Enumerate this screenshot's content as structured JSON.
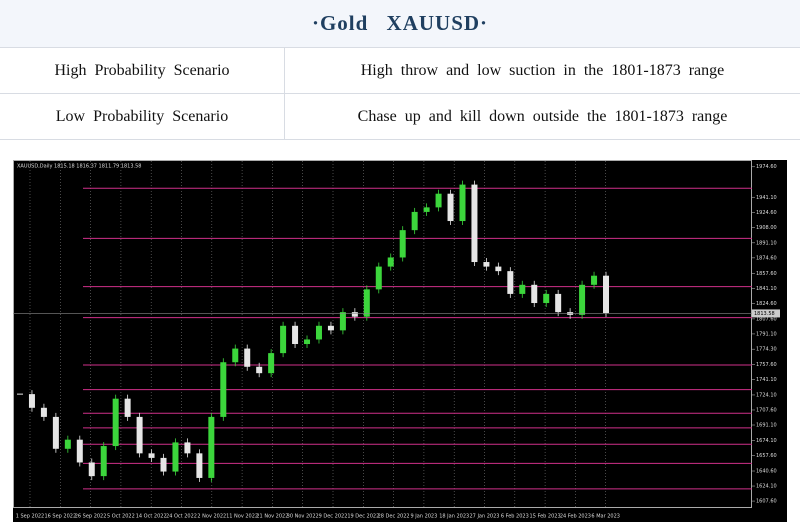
{
  "header": {
    "title": "·Gold XAUUSD·"
  },
  "table": {
    "rows": [
      [
        "High Probability Scenario",
        "High throw and low suction in the 1801-1873 range"
      ],
      [
        "Low Probability Scenario",
        "Chase up and kill down outside the 1801-1873 range"
      ]
    ]
  },
  "chart": {
    "info": "XAUUSD,Daily 1815.18 1816.37 1811.79 1813.58",
    "last_price": {
      "value": 1813.58,
      "label": "1813.58"
    },
    "ylim": [
      1600,
      1982
    ],
    "yticks": [
      {
        "value": 1974.6,
        "label": "1974.60"
      },
      {
        "value": 1941.1,
        "label": "1941.10"
      },
      {
        "value": 1924.6,
        "label": "1924.60"
      },
      {
        "value": 1908.0,
        "label": "1908.00"
      },
      {
        "value": 1891.1,
        "label": "1891.10"
      },
      {
        "value": 1874.6,
        "label": "1874.60"
      },
      {
        "value": 1857.6,
        "label": "1857.60"
      },
      {
        "value": 1841.1,
        "label": "1841.10"
      },
      {
        "value": 1824.6,
        "label": "1824.60"
      },
      {
        "value": 1807.6,
        "label": "1807.60"
      },
      {
        "value": 1791.1,
        "label": "1791.10"
      },
      {
        "value": 1774.3,
        "label": "1774.30"
      },
      {
        "value": 1757.6,
        "label": "1757.60"
      },
      {
        "value": 1741.1,
        "label": "1741.10"
      },
      {
        "value": 1724.1,
        "label": "1724.10"
      },
      {
        "value": 1707.6,
        "label": "1707.60"
      },
      {
        "value": 1691.1,
        "label": "1691.10"
      },
      {
        "value": 1674.1,
        "label": "1674.10"
      },
      {
        "value": 1657.6,
        "label": "1657.60"
      },
      {
        "value": 1640.6,
        "label": "1640.60"
      },
      {
        "value": 1624.1,
        "label": "1624.10"
      },
      {
        "value": 1607.6,
        "label": "1607.60"
      }
    ],
    "dates": [
      "1 Sep 2022",
      "16 Sep 2022",
      "26 Sep 2022",
      "5 Oct 2022",
      "14 Oct 2022",
      "24 Oct 2022",
      "2 Nov 2022",
      "11 Nov 2022",
      "21 Nov 2022",
      "30 Nov 2022",
      "9 Dec 2022",
      "19 Dec 2022",
      "28 Dec 2022",
      "9 Jan 2023",
      "18 Jan 2023",
      "27 Jan 2023",
      "6 Feb 2023",
      "15 Feb 2023",
      "24 Feb 2023",
      "6 Mar 2023"
    ],
    "levels": [
      1951,
      1896,
      1843,
      1809,
      1757,
      1730,
      1704,
      1688,
      1670,
      1649,
      1621
    ],
    "level_color": "#d0308a",
    "closes": [
      1725,
      1710,
      1700,
      1665,
      1675,
      1650,
      1635,
      1668,
      1720,
      1700,
      1660,
      1655,
      1640,
      1672,
      1660,
      1633,
      1700,
      1760,
      1775,
      1755,
      1748,
      1770,
      1800,
      1780,
      1785,
      1800,
      1795,
      1815,
      1810,
      1840,
      1865,
      1875,
      1905,
      1925,
      1930,
      1945,
      1915,
      1955,
      1870,
      1865,
      1860,
      1835,
      1845,
      1825,
      1835,
      1815,
      1812,
      1845,
      1855,
      1814
    ],
    "up_color": "#3cd63c",
    "down_color": "#e6e6e6"
  }
}
